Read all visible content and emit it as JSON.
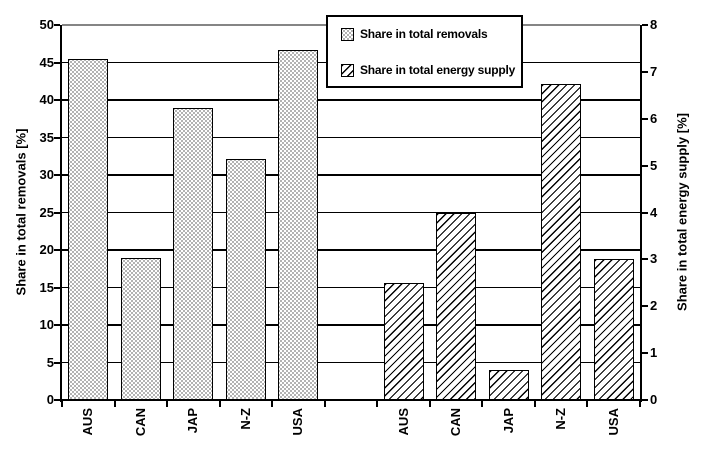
{
  "chart_data": {
    "type": "bar",
    "title": "",
    "categories": [
      "AUS",
      "CAN",
      "JAP",
      "N-Z",
      "USA"
    ],
    "series": [
      {
        "name": "Share in total removals",
        "axis": "left",
        "pattern": "dotted",
        "values": [
          45.5,
          19.0,
          39.0,
          32.1,
          46.7
        ]
      },
      {
        "name": "Share in total energy supply",
        "axis": "right",
        "pattern": "diagonal-hatch",
        "values": [
          2.5,
          4.0,
          0.63,
          6.75,
          3.0
        ]
      }
    ],
    "left_axis": {
      "label": "Share in total removals [%]",
      "min": 0,
      "max": 50,
      "tick_step": 5,
      "ticks": [
        0,
        5,
        10,
        15,
        20,
        25,
        30,
        35,
        40,
        45,
        50
      ]
    },
    "right_axis": {
      "label": "Share in total energy supply [%]",
      "min": 0,
      "max": 8,
      "tick_step": 1,
      "ticks": [
        0,
        1,
        2,
        3,
        4,
        5,
        6,
        7,
        8
      ]
    },
    "legend": {
      "position": "top-center"
    },
    "grid": {
      "horizontal": true,
      "gridlines_follow": "left-axis",
      "top_gridline_color": "#858585"
    },
    "layout_note": "two bar clusters on one category axis with one empty slot between; left cluster read on left axis, right cluster on right axis"
  },
  "colors": {
    "background": "#ffffff",
    "axis": "#000000",
    "gridline": "#000000",
    "top_gridline": "#858585",
    "bar_fill": "#ffffff",
    "bar_border": "#000000",
    "text": "#000000"
  }
}
